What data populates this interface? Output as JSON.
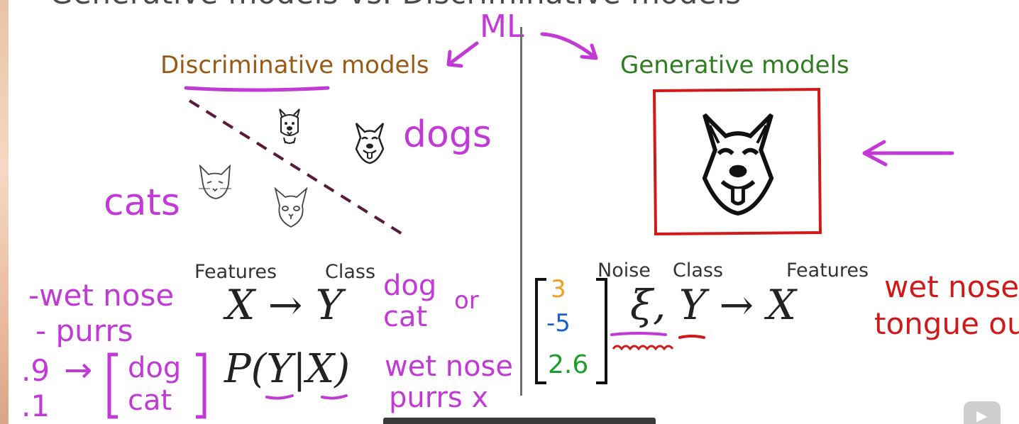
{
  "slide": {
    "title": "Generative models vs. Discriminative models",
    "ml_note": "ML",
    "discriminative": {
      "heading": "Discriminative models",
      "label_dogs": "dogs",
      "label_cats": "cats",
      "features_label": "Features",
      "class_label": "Class",
      "mapping": "X → Y",
      "probability": "P(Y|X)",
      "answer_dog": "dog",
      "answer_or": "or",
      "answer_cat": "cat",
      "feature_note_1": "-wet nose",
      "feature_note_2": "- purrs",
      "prob_dog": ".9",
      "prob_cat": ".1",
      "bracket_dog": "dog",
      "bracket_cat": "cat",
      "note_wet_nose": "wet nose",
      "note_purrs": "purrs x",
      "arrow": "→"
    },
    "generative": {
      "heading": "Generative models",
      "noise_label": "Noise",
      "class_label": "Class",
      "features_label": "Features",
      "mapping": "ξ, Y → X",
      "vector": [
        "3",
        "-5",
        "2.6"
      ],
      "note_line_1": "wet nose",
      "note_line_2": "tongue out"
    },
    "colors": {
      "discriminative_heading": "#9a5a14",
      "generative_heading": "#2e7d1e",
      "annotation": "#c23ad6",
      "highlight_box": "#d01a1a",
      "vector_1": "#f0a020",
      "vector_2": "#1a5fd0",
      "vector_3": "#1aa02a"
    },
    "icons": [
      "dog-icon",
      "husky-icon",
      "cat-icon",
      "husky-large-icon",
      "play-icon"
    ]
  }
}
